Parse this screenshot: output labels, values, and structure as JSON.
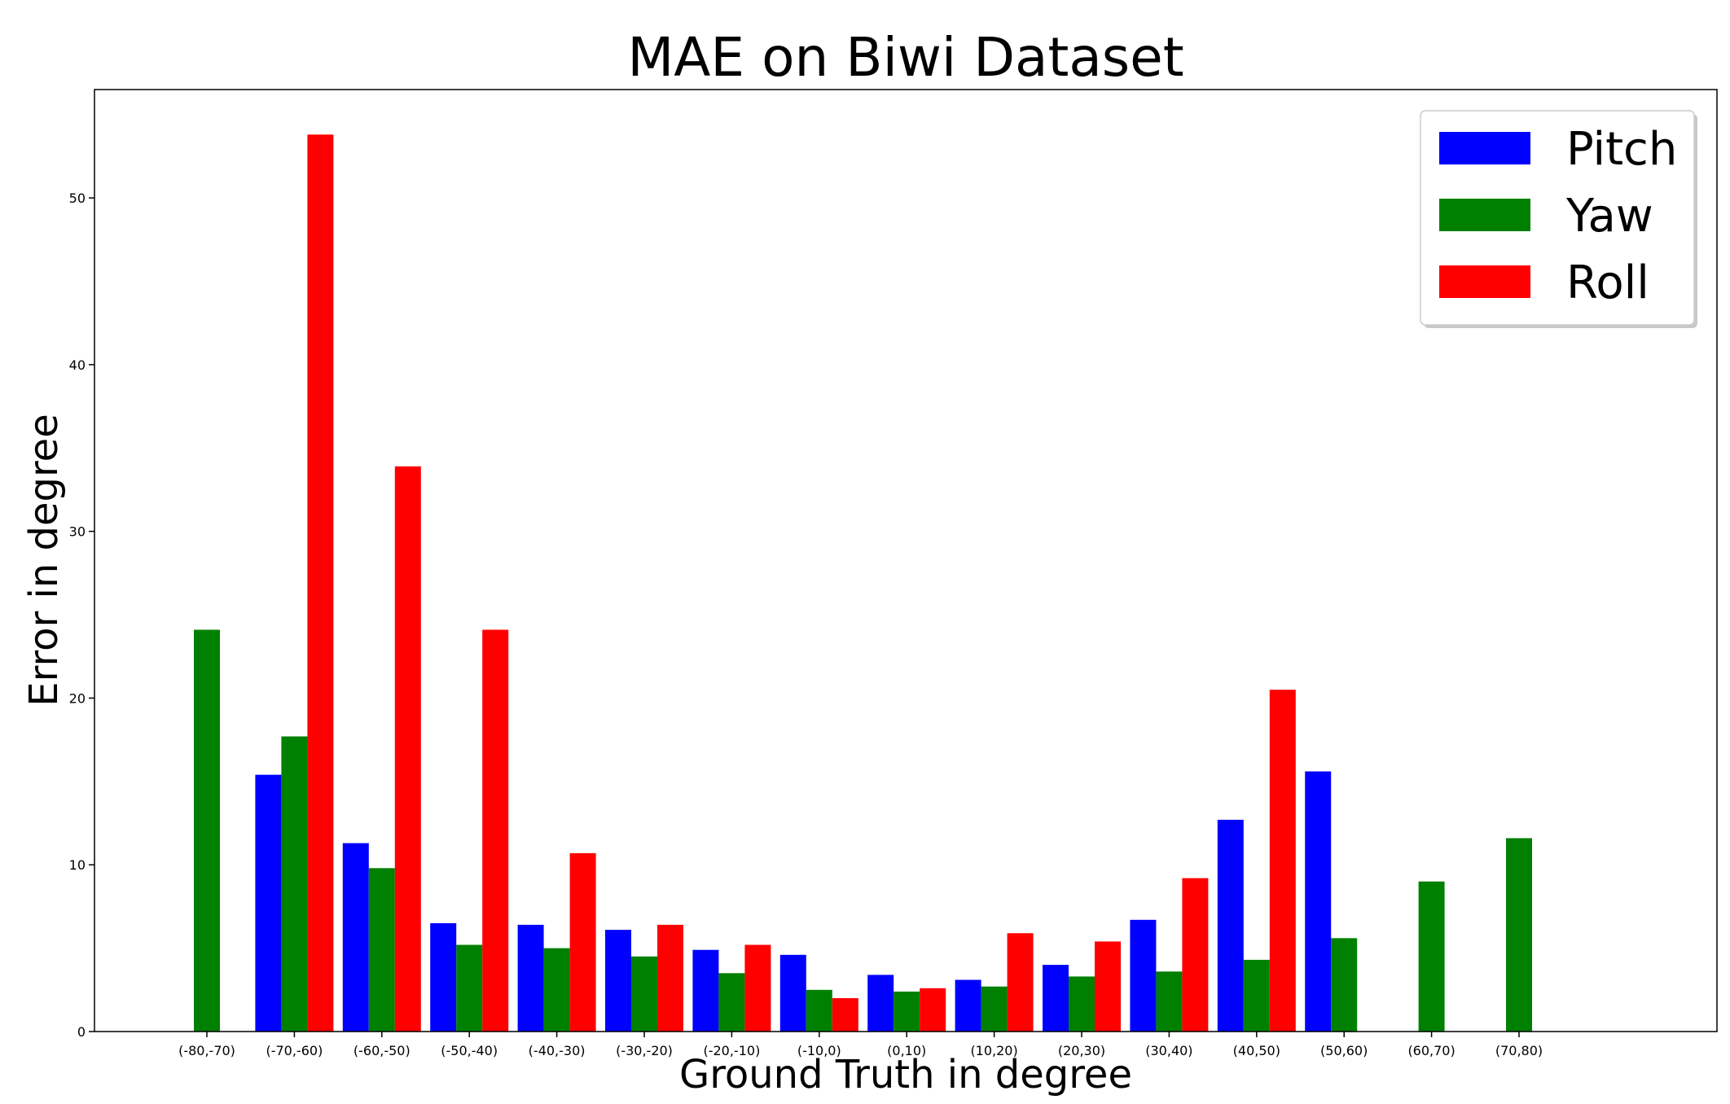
{
  "chart_data": {
    "type": "bar",
    "title": "MAE on Biwi Dataset",
    "xlabel": "Ground Truth in degree",
    "ylabel": "Error in degree",
    "categories": [
      "(-80,-70)",
      "(-70,-60)",
      "(-60,-50)",
      "(-50,-40)",
      "(-40,-30)",
      "(-30,-20)",
      "(-20,-10)",
      "(-10,0)",
      "(0,10)",
      "(10,20)",
      "(20,30)",
      "(30,40)",
      "(40,50)",
      "(50,60)",
      "(60,70)",
      "(70,80)"
    ],
    "series": [
      {
        "name": "Pitch",
        "color": "#0000ff",
        "values": [
          null,
          15.4,
          11.3,
          6.5,
          6.4,
          6.1,
          4.9,
          4.6,
          3.4,
          3.1,
          4.0,
          6.7,
          12.7,
          15.6,
          null,
          null
        ]
      },
      {
        "name": "Yaw",
        "color": "#008000",
        "values": [
          24.1,
          17.7,
          9.8,
          5.2,
          5.0,
          4.5,
          3.5,
          2.5,
          2.4,
          2.7,
          3.3,
          3.6,
          4.3,
          5.6,
          9.0,
          11.6
        ]
      },
      {
        "name": "Roll",
        "color": "#ff0000",
        "values": [
          null,
          53.8,
          33.9,
          24.1,
          10.7,
          6.4,
          5.2,
          2.0,
          2.6,
          5.9,
          5.4,
          9.2,
          20.5,
          null,
          null,
          null
        ]
      }
    ],
    "ylim": [
      0,
      56.5
    ],
    "yticks": [
      0,
      10,
      20,
      30,
      40,
      50
    ],
    "grid": false,
    "legend_position": "top-right"
  }
}
